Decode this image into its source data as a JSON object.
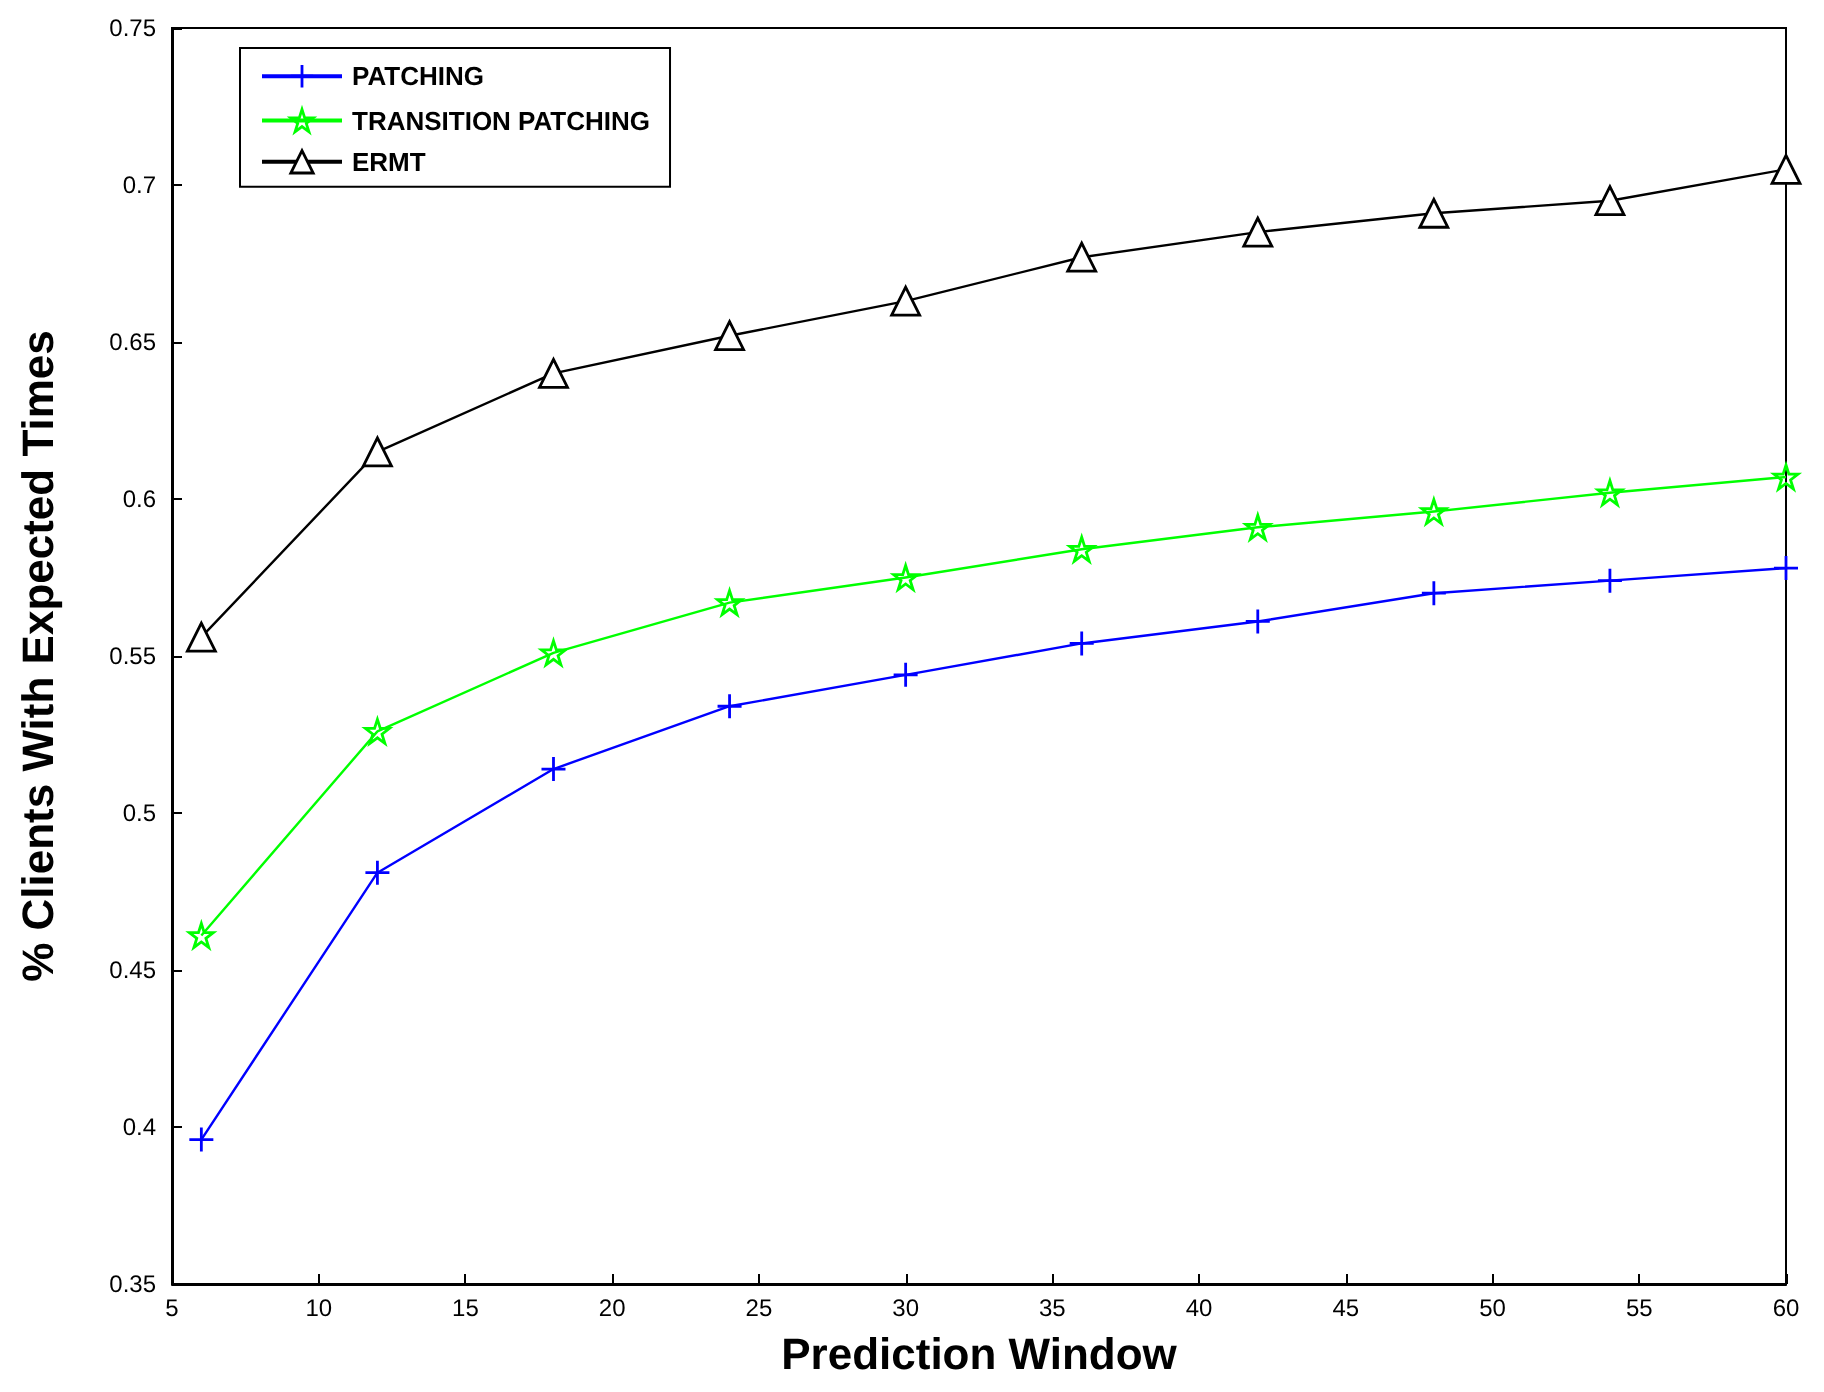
{
  "chart_data": {
    "type": "line",
    "xlabel": "Prediction Window",
    "ylabel": "% Clients With Expected Times",
    "x": [
      6,
      12,
      18,
      24,
      30,
      36,
      42,
      48,
      54,
      60
    ],
    "series": [
      {
        "name": "PATCHING",
        "color": "#0000ff",
        "marker": "cross",
        "values": [
          0.396,
          0.481,
          0.514,
          0.534,
          0.544,
          0.554,
          0.561,
          0.57,
          0.574,
          0.578
        ]
      },
      {
        "name": "TRANSITION PATCHING",
        "color": "#00ff00",
        "marker": "star",
        "values": [
          0.461,
          0.526,
          0.551,
          0.567,
          0.575,
          0.584,
          0.591,
          0.596,
          0.602,
          0.607
        ]
      },
      {
        "name": "ERMT",
        "color": "#000000",
        "marker": "triangle",
        "values": [
          0.556,
          0.615,
          0.64,
          0.652,
          0.663,
          0.677,
          0.685,
          0.691,
          0.695,
          0.705
        ]
      }
    ],
    "xlim": [
      5,
      60
    ],
    "xticks": [
      5,
      10,
      15,
      20,
      25,
      30,
      35,
      40,
      45,
      50,
      55,
      60
    ],
    "ylim": [
      0.35,
      0.75
    ],
    "yticks": [
      0.35,
      0.4,
      0.45,
      0.5,
      0.55,
      0.6,
      0.65,
      0.7,
      0.75
    ],
    "grid": false,
    "legend": "top left",
    "line_style": "solid"
  }
}
